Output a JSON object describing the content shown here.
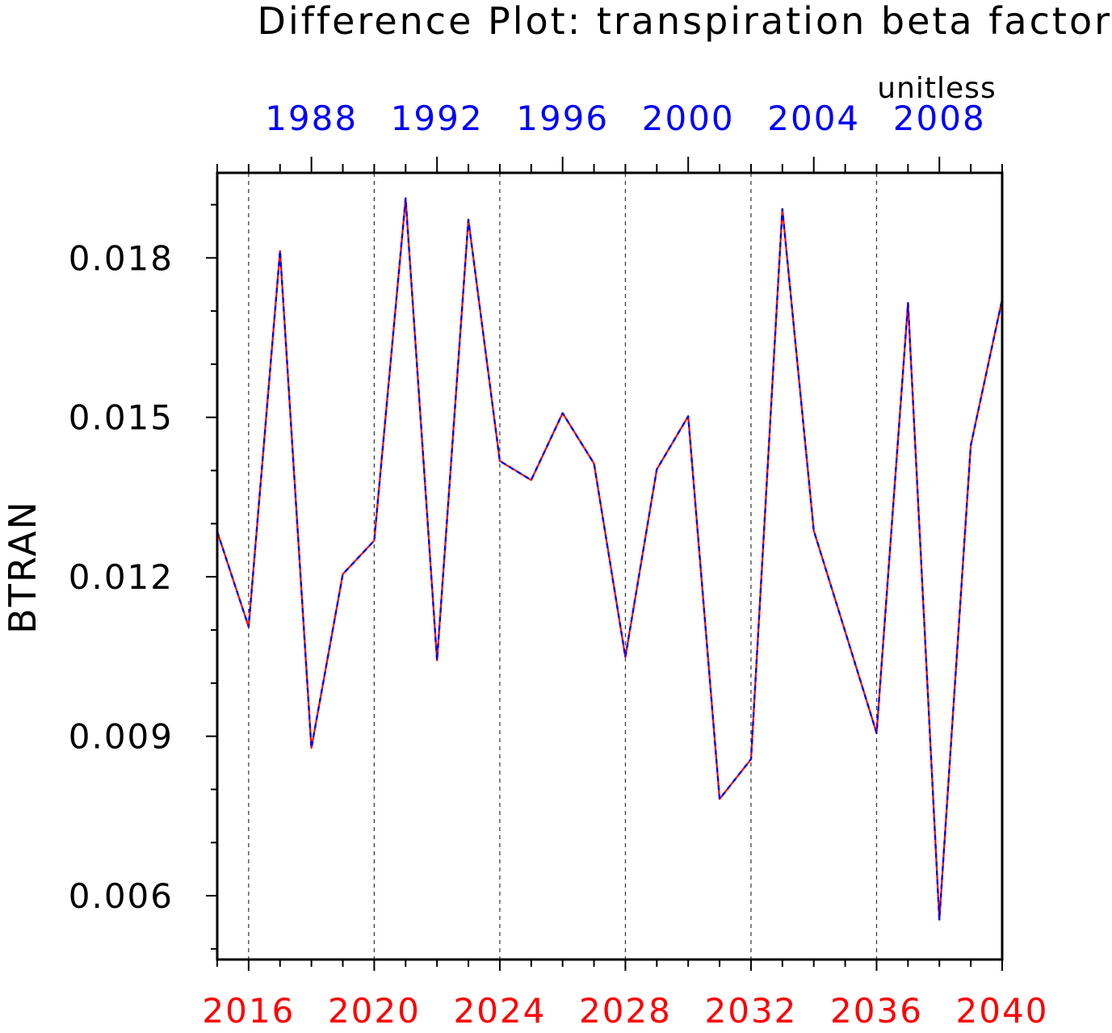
{
  "chart_data": {
    "type": "line",
    "title": "Difference Plot: transpiration beta factor",
    "units": "unitless",
    "ylabel": "BTRAN",
    "xlabel": "",
    "ylim": [
      0.0048,
      0.0196
    ],
    "yticks": [
      0.006,
      0.009,
      0.012,
      0.015,
      0.018
    ],
    "ytick_labels": [
      "0.006",
      "0.009",
      "0.012",
      "0.015",
      "0.018"
    ],
    "xlim": [
      2015,
      2040
    ],
    "bottom_axis": {
      "color": "#ff0000",
      "tick_labels": [
        "2016",
        "2020",
        "2024",
        "2028",
        "2032",
        "2036",
        "2040"
      ],
      "ticks": [
        2016,
        2020,
        2024,
        2028,
        2032,
        2036,
        2040
      ]
    },
    "top_axis": {
      "color": "#0000ff",
      "tick_labels": [
        "1988",
        "1992",
        "1996",
        "2000",
        "2004",
        "2008"
      ],
      "ticks": [
        1988,
        1992,
        1996,
        2000,
        2004,
        2008
      ],
      "offset_years": -30
    },
    "grid": "vertical dashed at bottom-axis major ticks",
    "x": [
      2015,
      2016,
      2017,
      2018,
      2019,
      2020,
      2021,
      2022,
      2023,
      2024,
      2025,
      2026,
      2027,
      2028,
      2029,
      2030,
      2031,
      2032,
      2033,
      2034,
      2035,
      2036,
      2037,
      2038,
      2039,
      2040
    ],
    "series": [
      {
        "color": "#ff0000",
        "style": "solid",
        "values": [
          0.01285,
          0.01106,
          0.01813,
          0.00878,
          0.01205,
          0.01268,
          0.01912,
          0.01043,
          0.01872,
          0.01418,
          0.01382,
          0.01508,
          0.01413,
          0.01049,
          0.01402,
          0.01502,
          0.00782,
          0.00857,
          0.01892,
          0.01287,
          0.01097,
          0.00906,
          0.01715,
          0.00555,
          0.01447,
          0.01722
        ]
      },
      {
        "color": "#0000ff",
        "style": "dashed",
        "values": [
          0.01285,
          0.01106,
          0.01813,
          0.00878,
          0.01205,
          0.01268,
          0.01912,
          0.01043,
          0.01872,
          0.01418,
          0.01382,
          0.01508,
          0.01413,
          0.01049,
          0.01402,
          0.01502,
          0.00782,
          0.00857,
          0.01892,
          0.01287,
          0.01097,
          0.00906,
          0.01715,
          0.00555,
          0.01447,
          0.01722
        ]
      }
    ]
  }
}
